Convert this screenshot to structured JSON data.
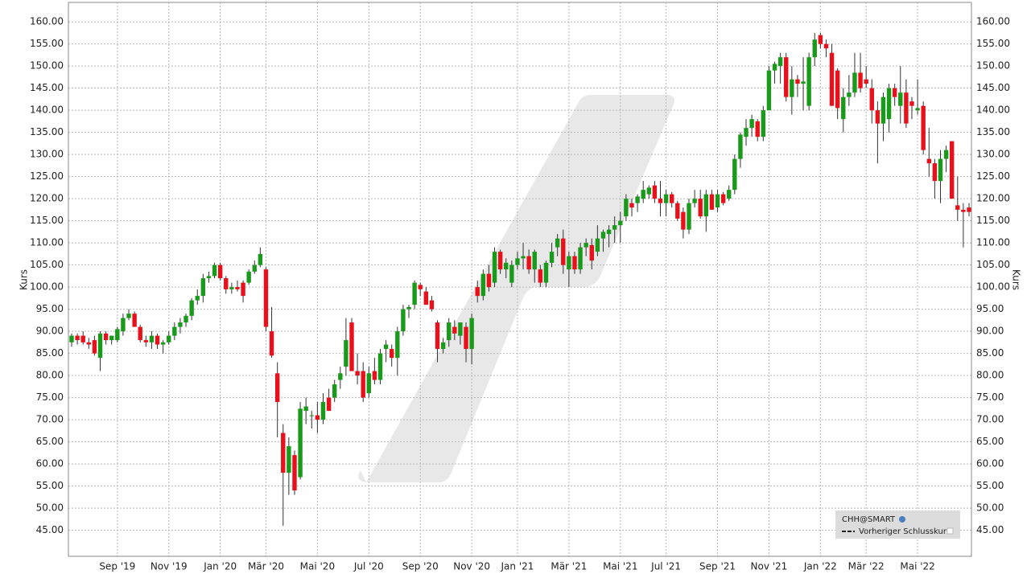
{
  "chart_data": {
    "type": "candlestick",
    "y_label": "Kurs",
    "legend": [
      "CHH@SMART",
      "Vorheriger Schlusskurs"
    ],
    "up_color": "#1a9a1a",
    "down_color": "#e8101a",
    "grid": true,
    "legend_position": "lower right",
    "ylim": [
      39.1,
      164.4
    ],
    "yticks": [
      {
        "value": 45,
        "label": "45.00"
      },
      {
        "value": 50,
        "label": "50.00"
      },
      {
        "value": 55,
        "label": "55.00"
      },
      {
        "value": 60,
        "label": "60.00"
      },
      {
        "value": 65,
        "label": "65.00"
      },
      {
        "value": 70,
        "label": "70.00"
      },
      {
        "value": 75,
        "label": "75.00"
      },
      {
        "value": 80,
        "label": "80.00"
      },
      {
        "value": 85,
        "label": "85.00"
      },
      {
        "value": 90,
        "label": "90.00"
      },
      {
        "value": 95,
        "label": "95.00"
      },
      {
        "value": 100,
        "label": "100.00"
      },
      {
        "value": 105,
        "label": "105.00"
      },
      {
        "value": 110,
        "label": "110.00"
      },
      {
        "value": 115,
        "label": "115.00"
      },
      {
        "value": 120,
        "label": "120.00"
      },
      {
        "value": 125,
        "label": "125.00"
      },
      {
        "value": 130,
        "label": "130.00"
      },
      {
        "value": 135,
        "label": "135.00"
      },
      {
        "value": 140,
        "label": "140.00"
      },
      {
        "value": 145,
        "label": "145.00"
      },
      {
        "value": 150,
        "label": "150.00"
      },
      {
        "value": 155,
        "label": "155.00"
      },
      {
        "value": 160,
        "label": "160.00"
      }
    ],
    "categories": [
      null,
      null,
      null,
      null,
      null,
      null,
      null,
      null,
      "Sep '19",
      null,
      null,
      null,
      null,
      null,
      null,
      null,
      null,
      "Nov '19",
      null,
      null,
      null,
      null,
      null,
      null,
      null,
      null,
      "Jan '20",
      null,
      null,
      null,
      null,
      null,
      null,
      null,
      "Mär '20",
      null,
      null,
      null,
      null,
      null,
      null,
      null,
      null,
      "Mai '20",
      null,
      null,
      null,
      null,
      null,
      null,
      null,
      null,
      "Jul '20",
      null,
      null,
      null,
      null,
      null,
      null,
      null,
      null,
      "Sep '20",
      null,
      null,
      null,
      null,
      null,
      null,
      null,
      null,
      "Nov '20",
      null,
      null,
      null,
      null,
      null,
      null,
      null,
      "Jan '21",
      null,
      null,
      null,
      null,
      null,
      null,
      null,
      null,
      "Mär '21",
      null,
      null,
      null,
      null,
      null,
      null,
      null,
      null,
      "Mai '21",
      null,
      null,
      null,
      null,
      null,
      null,
      null,
      "Jul '21",
      null,
      null,
      null,
      null,
      null,
      null,
      null,
      null,
      "Sep '21",
      null,
      null,
      null,
      null,
      null,
      null,
      null,
      null,
      "Nov '21",
      null,
      null,
      null,
      null,
      null,
      null,
      null,
      null,
      "Jan '22",
      null,
      null,
      null,
      null,
      null,
      null,
      null,
      "Mär '22",
      null,
      null,
      null,
      null,
      null,
      null,
      null,
      null,
      "Mai '22",
      null,
      null,
      null,
      null,
      null,
      null,
      null,
      null,
      null
    ],
    "open": [
      87.5,
      89,
      89,
      87.5,
      88,
      84,
      89.5,
      88,
      88,
      90,
      93,
      94,
      91,
      88,
      87.5,
      89,
      87,
      87.5,
      89,
      91,
      92,
      93.5,
      97,
      98,
      102,
      102.5,
      105,
      102,
      99.5,
      100,
      101,
      101,
      103.5,
      105,
      104,
      90,
      80.5,
      67,
      58,
      62,
      57,
      72,
      71,
      71,
      70,
      75,
      75,
      79,
      82,
      92,
      81,
      81,
      76,
      81,
      79,
      86,
      86,
      84,
      90,
      95,
      96,
      100.5,
      99,
      97,
      92,
      86,
      88,
      91,
      89,
      91,
      86,
      100,
      98,
      103,
      101,
      108,
      104,
      101,
      105,
      106.5,
      107,
      104,
      104,
      101,
      105.5,
      109,
      111,
      104,
      107,
      104,
      109,
      109.5,
      108,
      111,
      112,
      113,
      114,
      116,
      119,
      119,
      120,
      121,
      123,
      120,
      119,
      121,
      119,
      117,
      113,
      119,
      120,
      116,
      121,
      118,
      121,
      120,
      122,
      129,
      134,
      136,
      137.5,
      134,
      140,
      149,
      150,
      152,
      143,
      147,
      146,
      141,
      152,
      157,
      155,
      153,
      149,
      138,
      143,
      144,
      148.5,
      147,
      145,
      140,
      137,
      138,
      145,
      141,
      144,
      142,
      140,
      141,
      129,
      128,
      124,
      129,
      133,
      118.5,
      117.5,
      118
    ],
    "high": [
      89.5,
      89.5,
      90,
      88.5,
      89,
      90,
      90,
      89,
      91,
      94,
      95,
      94.5,
      91.5,
      89,
      90,
      89.5,
      88,
      90,
      92,
      93,
      94,
      97.5,
      99.5,
      103,
      103.5,
      105.5,
      105.5,
      102.5,
      101,
      101.5,
      101.5,
      104,
      106,
      109,
      104.5,
      95.5,
      83,
      69,
      66,
      63,
      74,
      75,
      72,
      74,
      76,
      77,
      79,
      82,
      93,
      93,
      85,
      83,
      82,
      84,
      86,
      88,
      87,
      91,
      96,
      96,
      101.5,
      101,
      100,
      98,
      92.5,
      88.5,
      93,
      92.5,
      92,
      92,
      94,
      101.5,
      104,
      105,
      109,
      108.5,
      106.5,
      106,
      108,
      110,
      108.5,
      108.5,
      105,
      106,
      110,
      112,
      113,
      108,
      108,
      110,
      111,
      111,
      114,
      113,
      114,
      116,
      117,
      121,
      120,
      121,
      124,
      123,
      124,
      124,
      122,
      121.5,
      119.5,
      118,
      120,
      122,
      122,
      122,
      122,
      122,
      121.5,
      123,
      130,
      135,
      138,
      139,
      138,
      141,
      150,
      151,
      153,
      153,
      150,
      148,
      152,
      153,
      157.5,
      157.5,
      156,
      155,
      149.5,
      145,
      148,
      153,
      153,
      150,
      147,
      142,
      144,
      146,
      146,
      150,
      147,
      143,
      147,
      142,
      136,
      129,
      131,
      132,
      133,
      125,
      119,
      119
    ],
    "low": [
      86.5,
      87,
      87,
      86,
      84.5,
      81,
      87,
      87,
      87.5,
      89,
      92.5,
      91,
      87.5,
      86.5,
      86,
      86,
      85,
      87,
      88,
      89.5,
      91,
      92.5,
      96,
      96.5,
      101,
      102,
      101.5,
      98.5,
      98.5,
      99,
      96.5,
      100.5,
      103,
      104.5,
      90,
      84,
      66,
      46,
      53,
      53,
      56.5,
      69,
      68,
      67,
      69,
      72,
      74,
      77,
      80,
      81,
      78,
      74,
      75,
      78,
      78,
      83,
      82,
      80,
      89,
      93,
      95,
      98,
      96,
      94.5,
      83,
      85,
      86.5,
      88,
      87,
      83,
      82.5,
      96.5,
      97,
      99,
      100,
      103,
      102,
      100,
      104,
      104,
      103,
      101,
      100,
      100,
      104.5,
      107,
      103,
      100,
      103,
      103,
      107,
      104,
      107,
      108,
      109,
      110,
      110,
      115,
      116,
      117,
      119,
      120,
      119,
      116,
      116,
      118,
      115,
      111,
      112,
      118,
      115.5,
      112.5,
      117.5,
      117,
      118.5,
      119.5,
      121,
      127,
      132,
      134,
      133,
      133,
      140,
      146,
      146,
      142,
      139,
      143,
      140,
      140,
      150,
      154,
      152,
      141,
      138,
      135,
      141,
      143,
      144,
      145,
      137,
      128,
      133,
      135,
      141,
      137,
      136,
      138,
      139,
      130,
      125,
      120,
      119,
      126,
      120,
      115,
      109,
      116
    ],
    "close": [
      89,
      88,
      87.5,
      87,
      85,
      89.5,
      88,
      89,
      90.5,
      93,
      94,
      91,
      88,
      87.5,
      89,
      87,
      87.5,
      89,
      91,
      92,
      93.5,
      97,
      98,
      102,
      102.5,
      105,
      102,
      99.5,
      100,
      99.5,
      98,
      103.5,
      105,
      107.5,
      91,
      84.5,
      74,
      58,
      64,
      54,
      72.5,
      73,
      71,
      70,
      74,
      72,
      78,
      80.5,
      88,
      81,
      80,
      75,
      80.5,
      79,
      85,
      87,
      84,
      90,
      95,
      95.5,
      101,
      99.5,
      96,
      95,
      86,
      87.5,
      92,
      89.5,
      92,
      86,
      93,
      98,
      103,
      100,
      108,
      104,
      105.5,
      105,
      106.5,
      107,
      104,
      108,
      101,
      105.5,
      108,
      111,
      105,
      107,
      104,
      109,
      110,
      106,
      111,
      112.5,
      113,
      114,
      115,
      120,
      118,
      120.5,
      122,
      122.5,
      120,
      119,
      121,
      119,
      115.5,
      113,
      119,
      120,
      116,
      121,
      117.5,
      121,
      119,
      122,
      129,
      134.5,
      136,
      138,
      134,
      140,
      149,
      150.5,
      152,
      143,
      147,
      146,
      146.5,
      152,
      156,
      155,
      154,
      141,
      140.5,
      143,
      144,
      148.5,
      145,
      146,
      140,
      137,
      143,
      145,
      143,
      144,
      137,
      141,
      140.5,
      131,
      128,
      124,
      129,
      131,
      120,
      117.5,
      117,
      117
    ]
  }
}
